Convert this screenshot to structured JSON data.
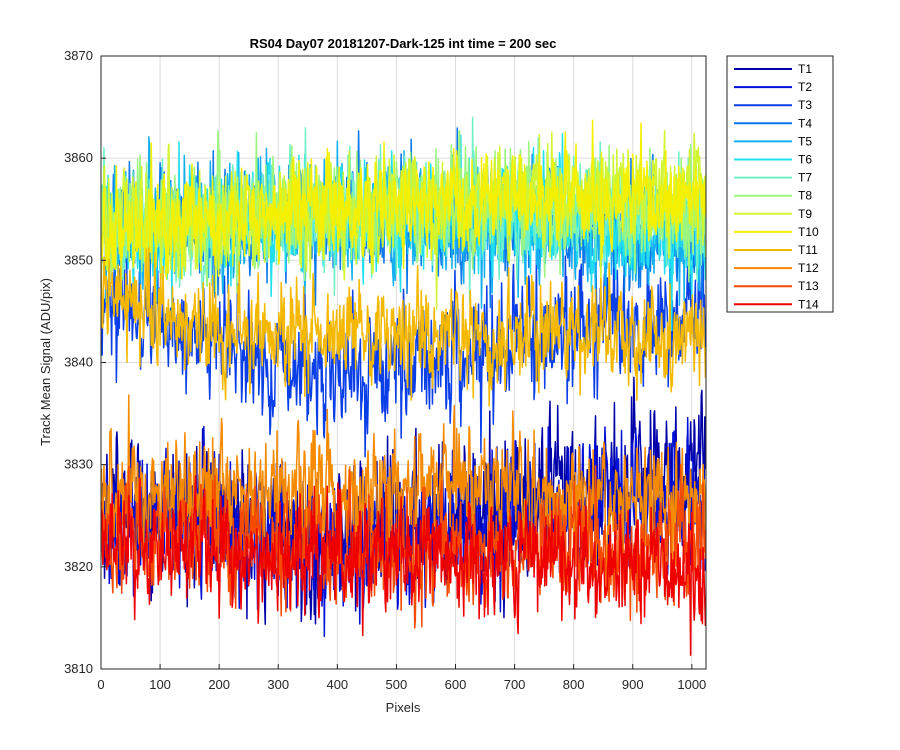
{
  "chart_data": {
    "type": "line",
    "title": "RS04 Day07 20181207-Dark-125 int time = 200 sec",
    "xlabel": "Pixels",
    "ylabel": "Track Mean Signal (ADU/pix)",
    "xlim": [
      0,
      1024
    ],
    "ylim": [
      3810,
      3870
    ],
    "xticks": [
      "0",
      "100",
      "200",
      "300",
      "400",
      "500",
      "600",
      "700",
      "800",
      "900",
      "1000"
    ],
    "yticks": [
      "3810",
      "3820",
      "3830",
      "3840",
      "3850",
      "3860",
      "3870"
    ],
    "grid": true,
    "legend_position": "outside-top-right",
    "x_count": 1024,
    "series": [
      {
        "name": "T1",
        "color": "#0000AA",
        "mean": 3824,
        "anchors": [
          [
            0,
            3826
          ],
          [
            200,
            3825
          ],
          [
            350,
            3822
          ],
          [
            500,
            3824
          ],
          [
            650,
            3826
          ],
          [
            800,
            3827
          ],
          [
            950,
            3829
          ],
          [
            1024,
            3831
          ]
        ],
        "noise": 3.2
      },
      {
        "name": "T2",
        "color": "#0010D8",
        "mean": 3824,
        "anchors": [
          [
            0,
            3825
          ],
          [
            200,
            3824
          ],
          [
            350,
            3822
          ],
          [
            500,
            3823
          ],
          [
            650,
            3825
          ],
          [
            800,
            3825
          ],
          [
            950,
            3826
          ],
          [
            1024,
            3828
          ]
        ],
        "noise": 3.0
      },
      {
        "name": "T3",
        "color": "#0A3FE8",
        "mean": 3840,
        "anchors": [
          [
            0,
            3846
          ],
          [
            150,
            3843
          ],
          [
            300,
            3839
          ],
          [
            450,
            3839
          ],
          [
            600,
            3841
          ],
          [
            750,
            3843
          ],
          [
            900,
            3844
          ],
          [
            1024,
            3845
          ]
        ],
        "noise": 2.6
      },
      {
        "name": "T4",
        "color": "#0A78EA",
        "mean": 3853,
        "anchors": [
          [
            0,
            3853
          ],
          [
            200,
            3853
          ],
          [
            400,
            3854
          ],
          [
            600,
            3854
          ],
          [
            800,
            3853
          ],
          [
            1024,
            3852
          ]
        ],
        "noise": 2.5
      },
      {
        "name": "T5",
        "color": "#12B0F0",
        "mean": 3853,
        "anchors": [
          [
            0,
            3853
          ],
          [
            200,
            3854
          ],
          [
            400,
            3854
          ],
          [
            600,
            3854
          ],
          [
            800,
            3853
          ],
          [
            1024,
            3852
          ]
        ],
        "noise": 2.5
      },
      {
        "name": "T6",
        "color": "#20E0EE",
        "mean": 3853,
        "anchors": [
          [
            0,
            3853
          ],
          [
            200,
            3854
          ],
          [
            400,
            3854
          ],
          [
            600,
            3855
          ],
          [
            800,
            3854
          ],
          [
            1024,
            3852
          ]
        ],
        "noise": 2.4
      },
      {
        "name": "T7",
        "color": "#6FF0C8",
        "mean": 3854,
        "anchors": [
          [
            0,
            3853
          ],
          [
            200,
            3854
          ],
          [
            400,
            3855
          ],
          [
            600,
            3855
          ],
          [
            800,
            3855
          ],
          [
            1024,
            3854
          ]
        ],
        "noise": 2.4
      },
      {
        "name": "T8",
        "color": "#9CF57E",
        "mean": 3854,
        "anchors": [
          [
            0,
            3853
          ],
          [
            200,
            3854
          ],
          [
            400,
            3855
          ],
          [
            600,
            3856
          ],
          [
            800,
            3855
          ],
          [
            1024,
            3855
          ]
        ],
        "noise": 2.4
      },
      {
        "name": "T9",
        "color": "#D2F532",
        "mean": 3855,
        "anchors": [
          [
            0,
            3853
          ],
          [
            200,
            3854
          ],
          [
            400,
            3855
          ],
          [
            600,
            3856
          ],
          [
            800,
            3856
          ],
          [
            1024,
            3856
          ]
        ],
        "noise": 2.3
      },
      {
        "name": "T10",
        "color": "#F5F000",
        "mean": 3855,
        "anchors": [
          [
            0,
            3853
          ],
          [
            200,
            3854
          ],
          [
            400,
            3855
          ],
          [
            600,
            3856
          ],
          [
            800,
            3856
          ],
          [
            1024,
            3856
          ]
        ],
        "noise": 2.2
      },
      {
        "name": "T11",
        "color": "#F5B800",
        "mean": 3843,
        "anchors": [
          [
            0,
            3847
          ],
          [
            150,
            3844
          ],
          [
            300,
            3842
          ],
          [
            500,
            3843
          ],
          [
            650,
            3842
          ],
          [
            800,
            3843
          ],
          [
            1024,
            3843
          ]
        ],
        "noise": 2.2
      },
      {
        "name": "T12",
        "color": "#F58A00",
        "mean": 3828,
        "anchors": [
          [
            0,
            3827
          ],
          [
            200,
            3828
          ],
          [
            400,
            3827
          ],
          [
            600,
            3828
          ],
          [
            800,
            3827
          ],
          [
            1024,
            3826
          ]
        ],
        "noise": 2.6
      },
      {
        "name": "T13",
        "color": "#F54A00",
        "mean": 3822,
        "anchors": [
          [
            0,
            3823
          ],
          [
            200,
            3822
          ],
          [
            400,
            3822
          ],
          [
            600,
            3822
          ],
          [
            800,
            3822
          ],
          [
            1024,
            3821
          ]
        ],
        "noise": 2.5
      },
      {
        "name": "T14",
        "color": "#EE0000",
        "mean": 3821,
        "anchors": [
          [
            0,
            3822
          ],
          [
            200,
            3821
          ],
          [
            400,
            3821
          ],
          [
            600,
            3821
          ],
          [
            800,
            3821
          ],
          [
            1024,
            3819
          ]
        ],
        "noise": 2.4
      }
    ]
  }
}
